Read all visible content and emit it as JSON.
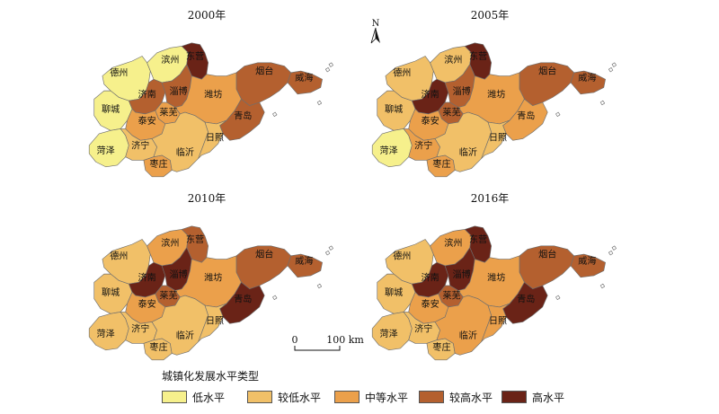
{
  "legend": {
    "title": "城镇化发展水平类型",
    "items": [
      {
        "key": "low",
        "label": "低水平",
        "color": "#f6f08c"
      },
      {
        "key": "mlow",
        "label": "较低水平",
        "color": "#f1c068"
      },
      {
        "key": "mid",
        "label": "中等水平",
        "color": "#eba04b"
      },
      {
        "key": "mhigh",
        "label": "较高水平",
        "color": "#b4602f"
      },
      {
        "key": "high",
        "label": "高水平",
        "color": "#6a2317"
      }
    ]
  },
  "scale_bar": {
    "start": "0",
    "end": "100 km"
  },
  "north_arrow": {
    "label": "N"
  },
  "cities": [
    {
      "id": "dezhou",
      "name": "德州"
    },
    {
      "id": "binzhou",
      "name": "滨州"
    },
    {
      "id": "dongying",
      "name": "东营"
    },
    {
      "id": "yantai",
      "name": "烟台"
    },
    {
      "id": "weihai",
      "name": "威海"
    },
    {
      "id": "liaocheng",
      "name": "聊城"
    },
    {
      "id": "jinan",
      "name": "济南"
    },
    {
      "id": "zibo",
      "name": "淄博"
    },
    {
      "id": "laiwu",
      "name": "莱芜"
    },
    {
      "id": "weifang",
      "name": "潍坊"
    },
    {
      "id": "qingdao",
      "name": "青岛"
    },
    {
      "id": "taian",
      "name": "泰安"
    },
    {
      "id": "heze",
      "name": "菏泽"
    },
    {
      "id": "jining",
      "name": "济宁"
    },
    {
      "id": "zaozhuang",
      "name": "枣庄"
    },
    {
      "id": "linyi",
      "name": "临沂"
    },
    {
      "id": "rizhao",
      "name": "日照"
    }
  ],
  "panels": [
    {
      "title": "2000年",
      "levels": {
        "dezhou": "low",
        "binzhou": "low",
        "dongying": "high",
        "yantai": "mhigh",
        "weihai": "mhigh",
        "liaocheng": "low",
        "jinan": "mhigh",
        "zibo": "mhigh",
        "laiwu": "mid",
        "weifang": "mid",
        "qingdao": "mhigh",
        "taian": "mid",
        "heze": "low",
        "jining": "mlow",
        "zaozhuang": "mid",
        "linyi": "mlow",
        "rizhao": "mlow"
      }
    },
    {
      "title": "2005年",
      "levels": {
        "dezhou": "mlow",
        "binzhou": "mlow",
        "dongying": "high",
        "yantai": "mhigh",
        "weihai": "mhigh",
        "liaocheng": "mlow",
        "jinan": "high",
        "zibo": "mhigh",
        "laiwu": "mhigh",
        "weifang": "mid",
        "qingdao": "mid",
        "taian": "mid",
        "heze": "low",
        "jining": "mid",
        "zaozhuang": "mid",
        "linyi": "mlow",
        "rizhao": "mlow"
      }
    },
    {
      "title": "2010年",
      "levels": {
        "dezhou": "mlow",
        "binzhou": "mid",
        "dongying": "mhigh",
        "yantai": "mhigh",
        "weihai": "mhigh",
        "liaocheng": "mlow",
        "jinan": "high",
        "zibo": "high",
        "laiwu": "mhigh",
        "weifang": "mid",
        "qingdao": "high",
        "taian": "mid",
        "heze": "mlow",
        "jining": "mlow",
        "zaozhuang": "mlow",
        "linyi": "mlow",
        "rizhao": "mlow"
      }
    },
    {
      "title": "2016年",
      "levels": {
        "dezhou": "mlow",
        "binzhou": "mid",
        "dongying": "high",
        "yantai": "mhigh",
        "weihai": "mhigh",
        "liaocheng": "mlow",
        "jinan": "high",
        "zibo": "high",
        "laiwu": "mhigh",
        "weifang": "mid",
        "qingdao": "high",
        "taian": "mid",
        "heze": "mlow",
        "jining": "mlow",
        "zaozhuang": "mlow",
        "linyi": "mid",
        "rizhao": "mid"
      }
    }
  ]
}
